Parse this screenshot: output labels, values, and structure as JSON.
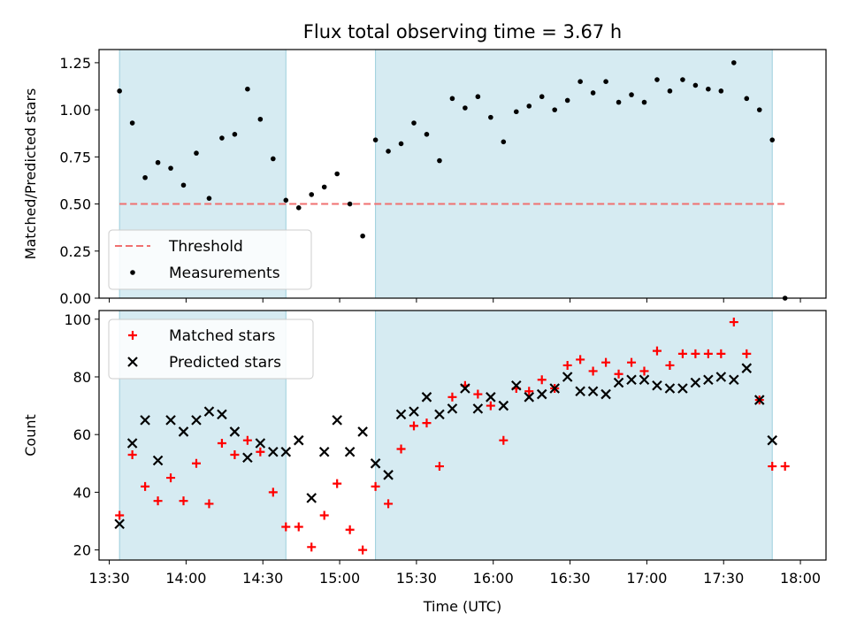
{
  "chart_data": {
    "type": "scatter",
    "title": "Flux total observing time = 3.67 h",
    "xlabel": "Time (UTC)",
    "x_ticks": [
      "13:30",
      "14:00",
      "14:30",
      "15:00",
      "15:30",
      "16:00",
      "16:30",
      "17:00",
      "17:30",
      "18:00"
    ],
    "xlim_minutes": [
      806,
      1090
    ],
    "shaded_intervals_minutes": [
      [
        814,
        879
      ],
      [
        914,
        1069
      ]
    ],
    "panels": [
      {
        "name": "ratio",
        "ylabel": "Matched/Predicted stars",
        "ylim": [
          0,
          1.32
        ],
        "y_ticks": [
          "0.00",
          "0.25",
          "0.50",
          "0.75",
          "1.00",
          "1.25"
        ],
        "threshold": {
          "label": "Threshold",
          "value": 0.5,
          "x_range": [
            814,
            1074
          ],
          "color": "#f07070"
        },
        "series": [
          {
            "name": "Measurements",
            "marker": "dot",
            "color": "#000000",
            "x": [
              814,
              819,
              824,
              829,
              834,
              839,
              844,
              849,
              854,
              859,
              864,
              869,
              874,
              879,
              884,
              889,
              894,
              899,
              904,
              909,
              914,
              919,
              924,
              929,
              934,
              939,
              944,
              949,
              954,
              959,
              964,
              969,
              974,
              979,
              984,
              989,
              994,
              999,
              1004,
              1009,
              1014,
              1019,
              1024,
              1029,
              1034,
              1039,
              1044,
              1049,
              1054,
              1059,
              1064,
              1069,
              1074
            ],
            "y": [
              1.1,
              0.93,
              0.64,
              0.72,
              0.69,
              0.6,
              0.77,
              0.53,
              0.85,
              0.87,
              1.11,
              0.95,
              0.74,
              0.52,
              0.48,
              0.55,
              0.59,
              0.66,
              0.5,
              0.33,
              0.84,
              0.78,
              0.82,
              0.93,
              0.87,
              0.73,
              1.06,
              1.01,
              1.07,
              0.96,
              0.83,
              0.99,
              1.02,
              1.07,
              1.0,
              1.05,
              1.15,
              1.09,
              1.15,
              1.04,
              1.08,
              1.04,
              1.16,
              1.1,
              1.16,
              1.13,
              1.11,
              1.1,
              1.25,
              1.06,
              1.0,
              0.84,
              0.0
            ]
          }
        ],
        "legend": [
          "Threshold",
          "Measurements"
        ]
      },
      {
        "name": "count",
        "ylabel": "Count",
        "ylim": [
          16.5,
          103
        ],
        "y_ticks": [
          "20",
          "40",
          "60",
          "80",
          "100"
        ],
        "series": [
          {
            "name": "Matched stars",
            "marker": "plus",
            "color": "#ff0000",
            "x": [
              814,
              819,
              824,
              829,
              834,
              839,
              844,
              849,
              854,
              859,
              864,
              869,
              874,
              879,
              884,
              889,
              894,
              899,
              904,
              909,
              914,
              919,
              924,
              929,
              934,
              939,
              944,
              949,
              954,
              959,
              964,
              969,
              974,
              979,
              984,
              989,
              994,
              999,
              1004,
              1009,
              1014,
              1019,
              1024,
              1029,
              1034,
              1039,
              1044,
              1049,
              1054,
              1059,
              1064,
              1069,
              1074
            ],
            "y": [
              32,
              53,
              42,
              37,
              45,
              37,
              50,
              36,
              57,
              53,
              58,
              54,
              40,
              28,
              28,
              21,
              32,
              43,
              27,
              20,
              42,
              36,
              55,
              63,
              64,
              49,
              73,
              77,
              74,
              70,
              58,
              76,
              75,
              79,
              76,
              84,
              86,
              82,
              85,
              81,
              85,
              82,
              89,
              84,
              88,
              88,
              88,
              88,
              99,
              88,
              72,
              49,
              49
            ]
          },
          {
            "name": "Predicted stars",
            "marker": "x",
            "color": "#000000",
            "x": [
              814,
              819,
              824,
              829,
              834,
              839,
              844,
              849,
              854,
              859,
              864,
              869,
              874,
              879,
              884,
              889,
              894,
              899,
              904,
              909,
              914,
              919,
              924,
              929,
              934,
              939,
              944,
              949,
              954,
              959,
              964,
              969,
              974,
              979,
              984,
              989,
              994,
              999,
              1004,
              1009,
              1014,
              1019,
              1024,
              1029,
              1034,
              1039,
              1044,
              1049,
              1054,
              1059,
              1064,
              1069
            ],
            "y": [
              29,
              57,
              65,
              51,
              65,
              61,
              65,
              68,
              67,
              61,
              52,
              57,
              54,
              54,
              58,
              38,
              54,
              65,
              54,
              61,
              50,
              46,
              67,
              68,
              73,
              67,
              69,
              76,
              69,
              73,
              70,
              77,
              73,
              74,
              76,
              80,
              75,
              75,
              74,
              78,
              79,
              79,
              77,
              76,
              76,
              78,
              79,
              80,
              79,
              83,
              72,
              58
            ]
          }
        ],
        "legend": [
          "Matched stars",
          "Predicted stars"
        ]
      }
    ]
  }
}
